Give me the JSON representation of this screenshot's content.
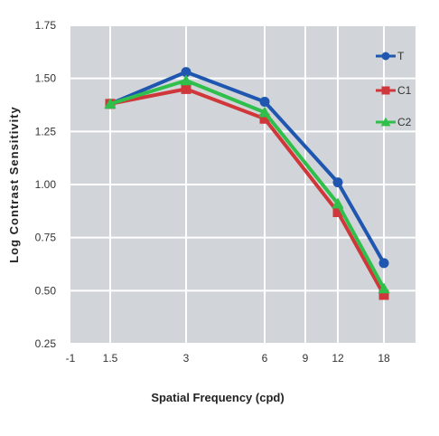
{
  "chart_data": {
    "type": "line",
    "xlabel": "Spatial Frequency (cpd)",
    "ylabel": "Log Contrast Sensitivity",
    "x_ticks": [
      "-1",
      "1.5",
      "3",
      "6",
      "9",
      "12",
      "18"
    ],
    "y_ticks": [
      "1.75",
      "1.50",
      "1.25",
      "1.00",
      "0.75",
      "0.50",
      "0.25"
    ],
    "ylim": [
      0.25,
      1.75
    ],
    "grid": true,
    "legend_position": "top-right",
    "x": [
      "1.5",
      "3",
      "6",
      "12",
      "18"
    ],
    "series": [
      {
        "name": "T",
        "color": "#1f56b0",
        "marker": "circle",
        "values": [
          1.38,
          1.53,
          1.39,
          1.01,
          0.63
        ]
      },
      {
        "name": "C1",
        "color": "#d0373a",
        "marker": "square",
        "values": [
          1.38,
          1.45,
          1.31,
          0.87,
          0.48
        ]
      },
      {
        "name": "C2",
        "color": "#2fbf4a",
        "marker": "triangle",
        "values": [
          1.38,
          1.49,
          1.34,
          0.91,
          0.51
        ]
      }
    ]
  }
}
